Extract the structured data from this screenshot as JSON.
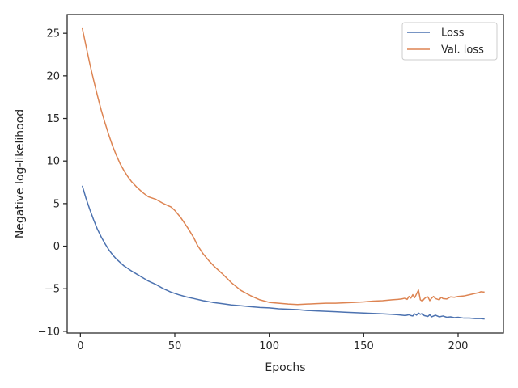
{
  "chart_data": {
    "type": "line",
    "title": "",
    "xlabel": "Epochs",
    "ylabel": "Negative log-likelihood",
    "xlim": [
      -7,
      224
    ],
    "ylim": [
      -10.2,
      27.2
    ],
    "xticks": [
      0,
      50,
      100,
      150,
      200
    ],
    "yticks": [
      -10,
      -5,
      0,
      5,
      10,
      15,
      20,
      25
    ],
    "xtick_labels": [
      "0",
      "50",
      "100",
      "150",
      "200"
    ],
    "ytick_labels": [
      "−10",
      "−5",
      "0",
      "5",
      "10",
      "15",
      "20",
      "25"
    ],
    "grid": false,
    "legend_position": "top-right",
    "series": [
      {
        "name": "Loss",
        "color": "#4c72b0",
        "points": [
          [
            1,
            7.1
          ],
          [
            3,
            5.6
          ],
          [
            5,
            4.3
          ],
          [
            7,
            3.1
          ],
          [
            9,
            2.0
          ],
          [
            11,
            1.1
          ],
          [
            13,
            0.3
          ],
          [
            15,
            -0.4
          ],
          [
            17,
            -1.0
          ],
          [
            19,
            -1.5
          ],
          [
            21,
            -1.9
          ],
          [
            23,
            -2.3
          ],
          [
            25,
            -2.6
          ],
          [
            27,
            -2.9
          ],
          [
            30,
            -3.3
          ],
          [
            33,
            -3.7
          ],
          [
            36,
            -4.1
          ],
          [
            40,
            -4.5
          ],
          [
            44,
            -5.0
          ],
          [
            48,
            -5.4
          ],
          [
            52,
            -5.7
          ],
          [
            56,
            -5.95
          ],
          [
            60,
            -6.15
          ],
          [
            65,
            -6.4
          ],
          [
            70,
            -6.6
          ],
          [
            75,
            -6.75
          ],
          [
            80,
            -6.9
          ],
          [
            85,
            -7.0
          ],
          [
            90,
            -7.1
          ],
          [
            95,
            -7.2
          ],
          [
            100,
            -7.25
          ],
          [
            105,
            -7.35
          ],
          [
            110,
            -7.4
          ],
          [
            115,
            -7.45
          ],
          [
            120,
            -7.55
          ],
          [
            125,
            -7.6
          ],
          [
            130,
            -7.65
          ],
          [
            135,
            -7.7
          ],
          [
            140,
            -7.75
          ],
          [
            145,
            -7.8
          ],
          [
            150,
            -7.85
          ],
          [
            155,
            -7.9
          ],
          [
            160,
            -7.95
          ],
          [
            165,
            -8.0
          ],
          [
            168,
            -8.05
          ],
          [
            170,
            -8.1
          ],
          [
            172,
            -8.15
          ],
          [
            174,
            -8.05
          ],
          [
            175,
            -8.15
          ],
          [
            176,
            -8.2
          ],
          [
            177,
            -7.95
          ],
          [
            178,
            -8.1
          ],
          [
            179,
            -7.85
          ],
          [
            180,
            -8.0
          ],
          [
            181,
            -7.9
          ],
          [
            182,
            -8.15
          ],
          [
            184,
            -8.25
          ],
          [
            185,
            -8.05
          ],
          [
            186,
            -8.3
          ],
          [
            188,
            -8.1
          ],
          [
            190,
            -8.3
          ],
          [
            192,
            -8.2
          ],
          [
            194,
            -8.35
          ],
          [
            196,
            -8.3
          ],
          [
            198,
            -8.4
          ],
          [
            200,
            -8.35
          ],
          [
            203,
            -8.45
          ],
          [
            206,
            -8.45
          ],
          [
            209,
            -8.5
          ],
          [
            212,
            -8.5
          ],
          [
            214,
            -8.55
          ]
        ]
      },
      {
        "name": "Val. loss",
        "color": "#dd8452",
        "points": [
          [
            1,
            25.6
          ],
          [
            3,
            23.5
          ],
          [
            5,
            21.4
          ],
          [
            7,
            19.5
          ],
          [
            9,
            17.7
          ],
          [
            11,
            16.0
          ],
          [
            13,
            14.5
          ],
          [
            15,
            13.1
          ],
          [
            17,
            11.8
          ],
          [
            19,
            10.7
          ],
          [
            21,
            9.7
          ],
          [
            23,
            8.9
          ],
          [
            25,
            8.2
          ],
          [
            27,
            7.6
          ],
          [
            30,
            6.9
          ],
          [
            33,
            6.3
          ],
          [
            36,
            5.8
          ],
          [
            40,
            5.5
          ],
          [
            44,
            5.0
          ],
          [
            48,
            4.6
          ],
          [
            50,
            4.2
          ],
          [
            53,
            3.4
          ],
          [
            57,
            2.1
          ],
          [
            60,
            1.0
          ],
          [
            62,
            0.1
          ],
          [
            65,
            -0.9
          ],
          [
            68,
            -1.7
          ],
          [
            71,
            -2.4
          ],
          [
            75,
            -3.2
          ],
          [
            80,
            -4.3
          ],
          [
            85,
            -5.2
          ],
          [
            90,
            -5.8
          ],
          [
            95,
            -6.3
          ],
          [
            100,
            -6.6
          ],
          [
            105,
            -6.7
          ],
          [
            110,
            -6.8
          ],
          [
            115,
            -6.85
          ],
          [
            120,
            -6.8
          ],
          [
            125,
            -6.75
          ],
          [
            130,
            -6.7
          ],
          [
            135,
            -6.7
          ],
          [
            140,
            -6.65
          ],
          [
            145,
            -6.6
          ],
          [
            150,
            -6.55
          ],
          [
            155,
            -6.45
          ],
          [
            160,
            -6.4
          ],
          [
            165,
            -6.3
          ],
          [
            168,
            -6.25
          ],
          [
            170,
            -6.2
          ],
          [
            172,
            -6.1
          ],
          [
            173,
            -6.25
          ],
          [
            174,
            -5.9
          ],
          [
            175,
            -6.1
          ],
          [
            176,
            -5.7
          ],
          [
            177,
            -6.05
          ],
          [
            178,
            -5.6
          ],
          [
            179,
            -5.15
          ],
          [
            180,
            -6.3
          ],
          [
            181,
            -6.45
          ],
          [
            182,
            -6.2
          ],
          [
            183,
            -6.0
          ],
          [
            184,
            -5.95
          ],
          [
            185,
            -6.4
          ],
          [
            186,
            -6.1
          ],
          [
            187,
            -5.9
          ],
          [
            188,
            -6.15
          ],
          [
            190,
            -6.3
          ],
          [
            191,
            -6.0
          ],
          [
            192,
            -6.15
          ],
          [
            194,
            -6.2
          ],
          [
            196,
            -5.95
          ],
          [
            198,
            -6.0
          ],
          [
            200,
            -5.9
          ],
          [
            203,
            -5.85
          ],
          [
            206,
            -5.7
          ],
          [
            209,
            -5.55
          ],
          [
            211,
            -5.45
          ],
          [
            212,
            -5.35
          ],
          [
            214,
            -5.4
          ]
        ]
      }
    ]
  }
}
